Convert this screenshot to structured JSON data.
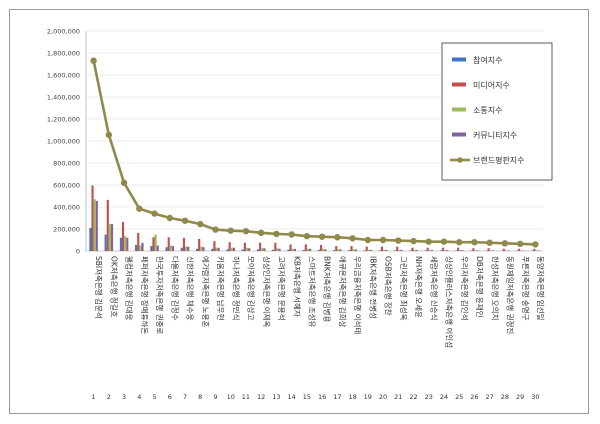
{
  "chart_data": {
    "type": "bar",
    "ylim": [
      0,
      2000000
    ],
    "yticks": [
      "0",
      "200,000",
      "400,000",
      "600,000",
      "800,000",
      "1,000,000",
      "1,200,000",
      "1,400,000",
      "1,600,000",
      "1,800,000",
      "2,000,000"
    ],
    "indices": [
      "1",
      "2",
      "3",
      "4",
      "5",
      "6",
      "7",
      "8",
      "9",
      "10",
      "11",
      "12",
      "13",
      "14",
      "15",
      "16",
      "17",
      "18",
      "19",
      "20",
      "21",
      "22",
      "23",
      "24",
      "25",
      "26",
      "27",
      "28",
      "29",
      "30"
    ],
    "categories": [
      "SBI저축은행 김문석",
      "OK저축은행 정길호",
      "웰컴저축은행 김대웅",
      "페퍼저축은행 장매튜하돈",
      "한국투자저축은행 권종로",
      "다올저축은행 김정수",
      "신한저축은행 채수웅",
      "예가람저축은행 노용훈",
      "키움저축은행 남우현",
      "하나저축은행 정민식",
      "모아저축은행 김상고",
      "상상인저축은행 이재옥",
      "고려저축은행 문용석",
      "KB저축은행 서혜자",
      "스마트저축은행 조성유",
      "BNK저축은행 김병용",
      "애큐온저축은행 김희상",
      "우리금융저축은행 이석태",
      "IBK저축은행 전병성",
      "OSB저축은행 장찬",
      "그린저축은행 최성욱",
      "NH저축은행 오세윤",
      "세람저축은행 신승식",
      "상상인플러스저축은행 이인섭",
      "우리저축은행 김인석",
      "DB저축은행 윤재인",
      "한성저축은행 오의치",
      "동원제일저축은행 권정진",
      "푸른저축은행 송명구",
      "동양저축은행 임선일"
    ],
    "series": [
      {
        "name": "참여지수",
        "color": "#4472c4",
        "values": [
          210000,
          150000,
          120000,
          55000,
          45000,
          35000,
          30000,
          20000,
          20000,
          15000,
          15000,
          15000,
          12000,
          12000,
          10000,
          10000,
          8000,
          8000,
          6000,
          6000,
          6000,
          5000,
          5000,
          5000,
          5000,
          4000,
          4000,
          3000,
          3000,
          3000
        ]
      },
      {
        "name": "미디어지수",
        "color": "#c0504d",
        "values": [
          595000,
          465000,
          265000,
          165000,
          125000,
          125000,
          120000,
          110000,
          90000,
          80000,
          75000,
          75000,
          75000,
          60000,
          60000,
          55000,
          45000,
          45000,
          40000,
          40000,
          40000,
          30000,
          30000,
          30000,
          30000,
          25000,
          25000,
          20000,
          20000,
          20000
        ]
      },
      {
        "name": "소통지수",
        "color": "#9bbb59",
        "values": [
          470000,
          245000,
          135000,
          50000,
          150000,
          50000,
          40000,
          40000,
          30000,
          30000,
          30000,
          25000,
          25000,
          20000,
          20000,
          20000,
          15000,
          15000,
          10000,
          10000,
          10000,
          10000,
          8000,
          8000,
          8000,
          6000,
          6000,
          5000,
          5000,
          5000
        ]
      },
      {
        "name": "커뮤니티지수",
        "color": "#8064a2",
        "values": [
          455000,
          245000,
          120000,
          75000,
          50000,
          45000,
          40000,
          35000,
          30000,
          30000,
          25000,
          25000,
          20000,
          20000,
          20000,
          15000,
          15000,
          15000,
          10000,
          10000,
          10000,
          10000,
          8000,
          8000,
          8000,
          6000,
          6000,
          5000,
          5000,
          5000
        ]
      },
      {
        "name": "브랜드평판지수",
        "color": "#8f8a4a",
        "values": [
          1730000,
          1055000,
          620000,
          385000,
          340000,
          300000,
          275000,
          245000,
          195000,
          185000,
          180000,
          165000,
          155000,
          150000,
          135000,
          130000,
          125000,
          115000,
          100000,
          100000,
          95000,
          90000,
          85000,
          85000,
          80000,
          80000,
          75000,
          70000,
          65000,
          60000
        ]
      }
    ],
    "legend_position": "right",
    "grid": true
  }
}
